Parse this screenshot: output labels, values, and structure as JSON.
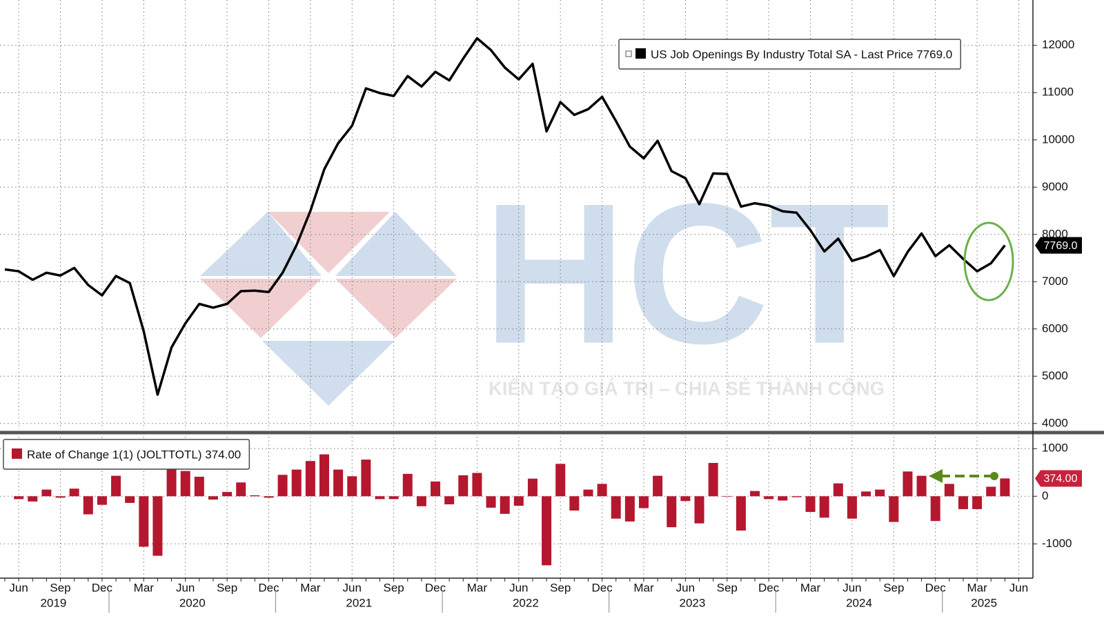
{
  "chart_data": [
    {
      "type": "line",
      "series": [
        {
          "name": "US Job Openings By Industry Total SA - Last Price 7769.0",
          "color": "#000000",
          "values": [
            7260,
            7220,
            7040,
            7190,
            7130,
            7290,
            6930,
            6710,
            7120,
            6970,
            5950,
            4610,
            5610,
            6120,
            6530,
            6450,
            6530,
            6800,
            6810,
            6780,
            7190,
            7770,
            8500,
            9380,
            9930,
            10300,
            11090,
            10990,
            10930,
            11350,
            11130,
            11440,
            11260,
            11720,
            12150,
            11900,
            11530,
            11280,
            11610,
            10180,
            10800,
            10530,
            10650,
            10910,
            10400,
            9860,
            9610,
            9980,
            9340,
            9190,
            8640,
            9290,
            9280,
            8590,
            8660,
            8610,
            8490,
            8460,
            8090,
            7640,
            7910,
            7440,
            7530,
            7670,
            7120,
            7630,
            8020,
            7540,
            7770,
            7480,
            7220,
            7390,
            7769,
            null
          ],
          "value_labels": [
            null,
            null,
            null,
            null,
            null,
            null,
            null,
            null,
            null,
            null,
            null,
            null,
            null,
            null,
            null,
            null,
            null,
            null,
            null,
            null,
            null,
            null,
            null,
            null,
            null,
            null,
            null,
            null,
            null,
            null,
            null,
            null,
            null,
            null,
            null,
            null,
            null,
            null,
            null,
            null,
            null,
            null,
            null,
            null,
            null,
            null,
            null,
            null,
            null,
            null,
            null,
            null,
            null,
            null,
            null,
            null,
            null,
            null,
            null,
            null,
            null,
            null,
            null,
            null,
            null,
            null,
            null,
            null,
            null,
            null,
            null,
            null,
            "7769.0",
            null
          ]
        }
      ],
      "ylim": [
        3880,
        12960
      ],
      "yticks": [
        4000,
        5000,
        6000,
        7000,
        8000,
        9000,
        10000,
        11000,
        12000
      ],
      "grid": true
    },
    {
      "type": "bar",
      "categories": [
        null,
        "Jun",
        null,
        null,
        "Sep",
        null,
        null,
        "Dec",
        null,
        null,
        "Mar",
        null,
        null,
        "Jun",
        null,
        null,
        "Sep",
        null,
        null,
        "Dec",
        null,
        null,
        "Mar",
        null,
        null,
        "Jun",
        null,
        null,
        "Sep",
        null,
        null,
        "Dec",
        null,
        null,
        "Mar",
        null,
        null,
        "Jun",
        null,
        null,
        "Sep",
        null,
        null,
        "Dec",
        null,
        null,
        "Mar",
        null,
        null,
        "Jun",
        null,
        null,
        "Sep",
        null,
        null,
        "Dec",
        null,
        null,
        "Mar",
        null,
        null,
        "Jun",
        null,
        null,
        "Sep",
        null,
        null,
        "Dec",
        null,
        null,
        "Mar",
        null,
        null,
        "Jun"
      ],
      "year_labels": [
        "2019",
        "2020",
        "2021",
        "2022",
        "2023",
        "2024",
        "2025"
      ],
      "series": [
        {
          "name": "Rate of Change 1(1) (JOLTTOTL) 374.00",
          "color": "#b5172f",
          "values": [
            null,
            -60,
            -110,
            140,
            -30,
            160,
            -380,
            -180,
            430,
            -140,
            -1060,
            -1250,
            560,
            530,
            410,
            -70,
            90,
            290,
            20,
            -30,
            450,
            560,
            740,
            880,
            560,
            420,
            770,
            -60,
            -60,
            470,
            -210,
            310,
            -170,
            440,
            490,
            -240,
            -370,
            -200,
            370,
            -1450,
            680,
            -300,
            140,
            260,
            -470,
            -530,
            -250,
            430,
            -650,
            -100,
            -570,
            700,
            -10,
            -720,
            110,
            -60,
            -90,
            -20,
            -330,
            -450,
            270,
            -470,
            100,
            140,
            -540,
            520,
            430,
            -520,
            260,
            -270,
            -270,
            200,
            374,
            null
          ],
          "value_labels": [
            null,
            null,
            null,
            null,
            null,
            null,
            null,
            null,
            null,
            null,
            null,
            null,
            null,
            null,
            null,
            null,
            null,
            null,
            null,
            null,
            null,
            null,
            null,
            null,
            null,
            null,
            null,
            null,
            null,
            null,
            null,
            null,
            null,
            null,
            null,
            null,
            null,
            null,
            null,
            null,
            null,
            null,
            null,
            null,
            null,
            null,
            null,
            null,
            null,
            null,
            null,
            null,
            null,
            null,
            null,
            null,
            null,
            null,
            null,
            null,
            null,
            null,
            null,
            null,
            null,
            null,
            null,
            null,
            null,
            null,
            null,
            null,
            "374.00",
            null
          ]
        }
      ],
      "ylim": [
        -1720,
        1250
      ],
      "yticks": [
        -1000,
        0,
        1000
      ],
      "grid": true
    }
  ],
  "watermark": {
    "logo": "HCT",
    "slogan": "KIẾN TẠO GIÁ TRỊ – CHIA SẺ THÀNH CÔNG"
  }
}
